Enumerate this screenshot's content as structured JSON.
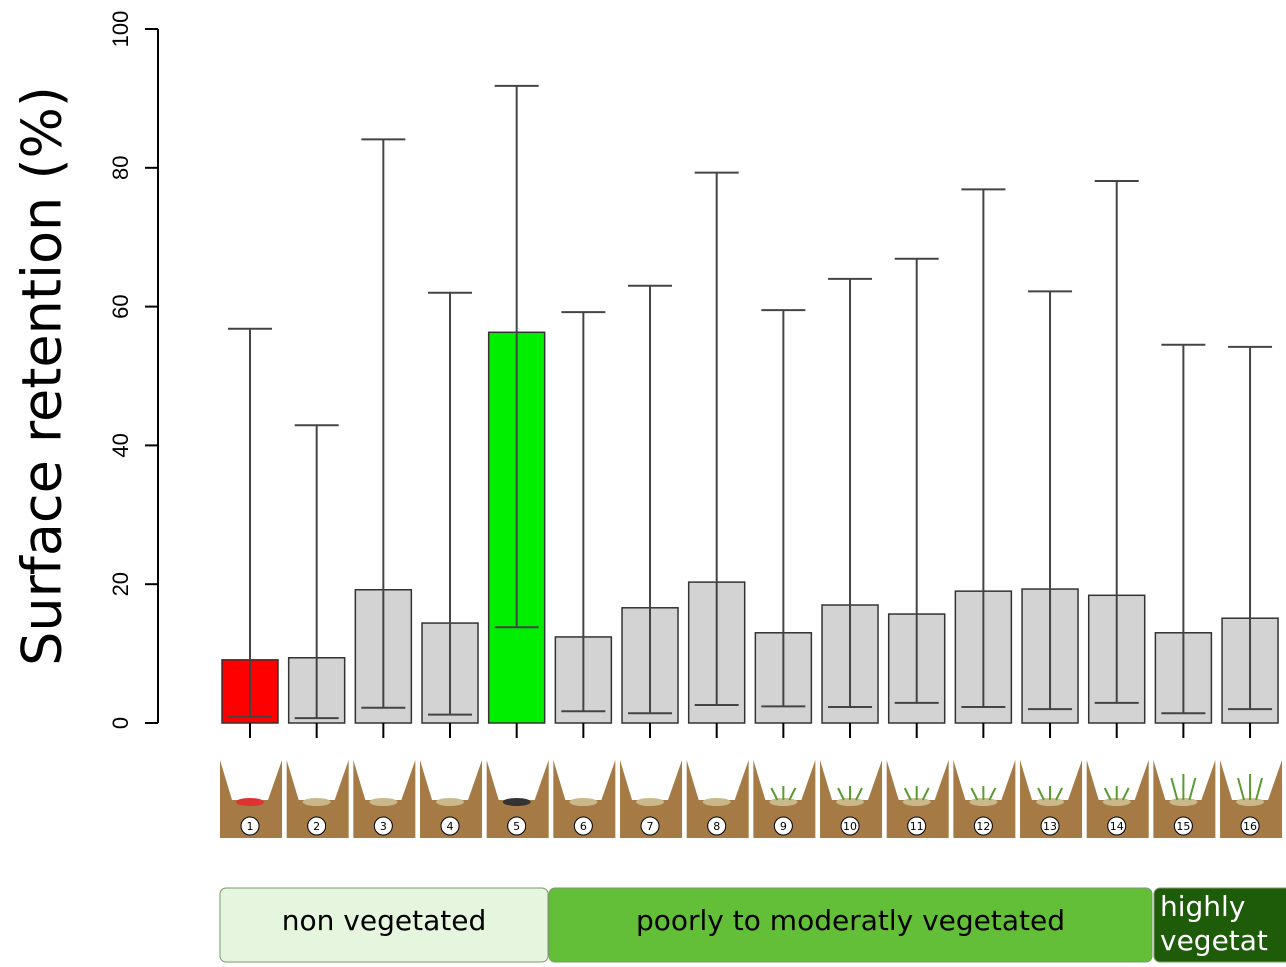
{
  "chart_data": {
    "type": "bar",
    "y_label": "Surface retention (%)",
    "categories": [
      "1",
      "2",
      "3",
      "4",
      "5",
      "6",
      "7",
      "8",
      "9",
      "10",
      "11",
      "12",
      "13",
      "14",
      "15",
      "16"
    ],
    "values": [
      9.1,
      9.4,
      19.2,
      14.4,
      56.3,
      12.4,
      16.6,
      20.3,
      13.0,
      17.0,
      15.7,
      19.0,
      19.3,
      18.4,
      13.0,
      15.1
    ],
    "lower": [
      0.9,
      0.7,
      2.2,
      1.2,
      13.8,
      1.7,
      1.4,
      2.6,
      2.4,
      2.3,
      2.9,
      2.3,
      2.0,
      2.9,
      1.4,
      2.0
    ],
    "upper": [
      56.8,
      42.9,
      84.1,
      62.0,
      91.8,
      59.2,
      63.0,
      79.3,
      59.5,
      64.0,
      66.9,
      76.9,
      62.2,
      78.1,
      54.5,
      54.2
    ],
    "colors": [
      "#ff0000",
      "#d3d3d3",
      "#d3d3d3",
      "#d3d3d3",
      "#00ee00",
      "#d3d3d3",
      "#d3d3d3",
      "#d3d3d3",
      "#d3d3d3",
      "#d3d3d3",
      "#d3d3d3",
      "#d3d3d3",
      "#d3d3d3",
      "#d3d3d3",
      "#d3d3d3",
      "#d3d3d3"
    ],
    "ylim": [
      0,
      100
    ],
    "yticks": [
      0,
      20,
      40,
      60,
      80,
      100
    ],
    "groups": [
      {
        "label": [
          "non vegetated"
        ],
        "color": "#e6f5dd"
      },
      {
        "label": [
          "poorly to moderatly vegetated"
        ],
        "color": "#63bf38"
      },
      {
        "label": [
          "highly",
          "vegetat"
        ],
        "color": "#1f5c0a"
      }
    ]
  }
}
